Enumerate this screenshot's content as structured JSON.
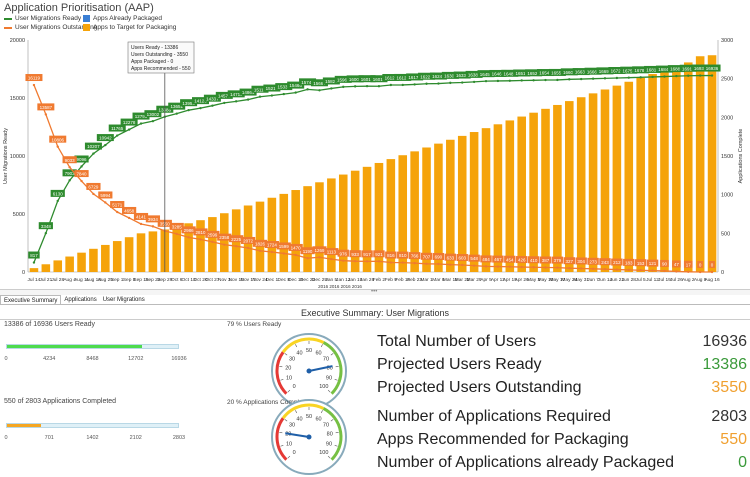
{
  "app": {
    "title": "Application Prioritisation (AAP)"
  },
  "legend": [
    {
      "label": "User Migrations Ready",
      "color": "#2e8b2e",
      "kind": "line"
    },
    {
      "label": "Apps Already Packaged",
      "color": "#3b7fd4",
      "kind": "box"
    },
    {
      "label": "User Migrations Outstanding",
      "color": "#f07a30",
      "kind": "line"
    },
    {
      "label": "Apps to Target for Packaging",
      "color": "#f5a30a",
      "kind": "box"
    }
  ],
  "tooltip": {
    "lines": [
      "Users Ready - 13386",
      "Users Outstanding - 3550",
      "Apps Packaged - 0",
      "Apps Recommended - 550"
    ]
  },
  "chart_data": {
    "type": "bar",
    "xlabel": "2016 2016 2016 2016",
    "ylabel": "User Migrations Ready",
    "y2label": "Applications Complete",
    "ylim": [
      0,
      20000
    ],
    "y2lim": [
      0,
      3000
    ],
    "yticks": [
      "0",
      "5000",
      "10000",
      "15000",
      "20000"
    ],
    "y2ticks": [
      "0",
      "500",
      "1000",
      "1500",
      "2000",
      "2500",
      "3000"
    ],
    "categories": [
      "Jul 14",
      "Jul 21",
      "Jul 28",
      "Aug 4",
      "Aug 11",
      "Aug 18",
      "Aug 25",
      "Sep 1",
      "Sep 8",
      "Sep 15",
      "Sep 22",
      "Sep 29",
      "Oct 6",
      "Oct 13",
      "Oct 20",
      "Oct 27",
      "Nov 3",
      "Nov 10",
      "Nov 17",
      "Nov 24",
      "Dec 1",
      "Dec 8",
      "Dec 15",
      "Dec 22",
      "Dec 29",
      "Jan 5",
      "Jan 12",
      "Jan 19",
      "Jan 26",
      "Feb 2",
      "Feb 9",
      "Feb 16",
      "Feb 23",
      "Mar 1",
      "Mar 8",
      "Mar 15",
      "Mar 22",
      "Mar 29",
      "Apr 5",
      "Apr 12",
      "Apr 19",
      "Apr 26",
      "May 3",
      "May 10",
      "May 17",
      "May 24",
      "May 31",
      "Jun 7",
      "Jun 14",
      "Jun 21",
      "Jun 28",
      "Jul 5",
      "Jul 12",
      "Jul 19",
      "Jul 26",
      "Aug 2",
      "Aug 9",
      "Aug 16"
    ],
    "series": [
      {
        "name": "User Migrations Ready",
        "type": "line",
        "axis": "left",
        "color": "#2e8b2e",
        "values": [
          817,
          3348,
          6130,
          7903,
          9096,
          10207,
          10942,
          11765,
          12278,
          12795,
          13002,
          13386,
          13651,
          13950,
          14126,
          14337,
          14578,
          14711,
          14864,
          15110,
          15212,
          15337,
          15466,
          15746,
          15667,
          15823,
          15960,
          16003,
          16019,
          16015,
          16120,
          16126,
          16170,
          16229,
          16246,
          16303,
          16333,
          16388,
          16452,
          16469,
          16482,
          16510,
          16526,
          16549,
          16557,
          16609,
          16632,
          16663,
          16693,
          16724,
          16753,
          16783,
          16815,
          16846,
          16889,
          16919,
          16936,
          16936
        ],
        "labels": [
          "817",
          "3348",
          "6130",
          "7903",
          "9096",
          "10207",
          "10942",
          "11765",
          "12278",
          "12795",
          "13002",
          "13386",
          "13651",
          "13950",
          "14126",
          "14337",
          "14578",
          "14711",
          "14864",
          "15110",
          "15212",
          "15337",
          "15466",
          "15746",
          "15667",
          "15823",
          "15960",
          "16003",
          "16019",
          "16015",
          "16120",
          "16126",
          "16170",
          "16229",
          "16246",
          "16303",
          "16333",
          "16388",
          "16452",
          "16469",
          "16482",
          "16510",
          "16526",
          "16549",
          "16557",
          "16609",
          "16632",
          "16663",
          "16693",
          "16724",
          "16753",
          "16783",
          "16815",
          "16846",
          "16889",
          "16919",
          "16936",
          "16936"
        ]
      },
      {
        "name": "User Migrations Outstanding",
        "type": "line",
        "axis": "left",
        "color": "#f07a30",
        "values": [
          16119,
          13587,
          10806,
          9033,
          7840,
          6729,
          5994,
          5171,
          4658,
          4141,
          3934,
          3550,
          3285,
          2986,
          2810,
          2599,
          2358,
          2225,
          2072,
          1826,
          1724,
          1599,
          1470,
          1190,
          1269,
          1113,
          976,
          933,
          917,
          921,
          816,
          810,
          766,
          707,
          690,
          633,
          603,
          548,
          484,
          467,
          454,
          426,
          410,
          387,
          379,
          327,
          304,
          273,
          243,
          212,
          183,
          153,
          121,
          90,
          47,
          17,
          0,
          0
        ],
        "labels": [
          "16119",
          "13587",
          "10806",
          "9033",
          "7840",
          "6729",
          "5994",
          "5171",
          "4658",
          "4141",
          "3934",
          "3550",
          "3285",
          "2986",
          "2810",
          "2599",
          "2358",
          "2225",
          "2072",
          "1826",
          "1724",
          "1599",
          "1470",
          "1190",
          "1269",
          "1113",
          "976",
          "933",
          "917",
          "921",
          "816",
          "810",
          "766",
          "707",
          "690",
          "633",
          "603",
          "548",
          "484",
          "467",
          "454",
          "426",
          "410",
          "387",
          "379",
          "327",
          "304",
          "273",
          "243",
          "212",
          "183",
          "153",
          "121",
          "90",
          "47",
          "17",
          "0",
          "0"
        ]
      },
      {
        "name": "Apps to Target for Packaging",
        "type": "bar",
        "axis": "right",
        "color": "#f5a30a",
        "values": [
          50,
          100,
          150,
          200,
          250,
          300,
          350,
          400,
          450,
          500,
          525,
          550,
          590,
          630,
          670,
          710,
          760,
          810,
          860,
          910,
          960,
          1010,
          1060,
          1110,
          1160,
          1210,
          1260,
          1310,
          1360,
          1410,
          1460,
          1510,
          1560,
          1610,
          1660,
          1710,
          1760,
          1810,
          1860,
          1910,
          1960,
          2010,
          2060,
          2110,
          2160,
          2210,
          2260,
          2310,
          2360,
          2410,
          2460,
          2510,
          2560,
          2610,
          2660,
          2710,
          2790,
          2803
        ]
      },
      {
        "name": "Apps Already Packaged",
        "type": "bar",
        "axis": "right",
        "color": "#3b7fd4",
        "values": [
          0,
          0,
          0,
          0,
          0,
          0,
          0,
          0,
          0,
          0,
          0,
          0,
          0,
          0,
          0,
          0,
          0,
          0,
          0,
          0,
          0,
          0,
          0,
          0,
          0,
          0,
          0,
          0,
          0,
          0,
          0,
          0,
          0,
          0,
          0,
          0,
          0,
          0,
          0,
          0,
          0,
          0,
          0,
          0,
          0,
          0,
          0,
          0,
          0,
          0,
          0,
          0,
          0,
          0,
          0,
          0,
          0,
          0
        ]
      }
    ]
  },
  "tabs": [
    {
      "label": "Executive Summary",
      "active": true
    },
    {
      "label": "Applications",
      "active": false
    },
    {
      "label": "User Migrations",
      "active": false
    }
  ],
  "summary": {
    "title": "Executive Summary:  User Migrations"
  },
  "progress": [
    {
      "label": "13386 of 16936  Users Ready",
      "fraction": 0.79,
      "color": "#4ddb4d",
      "ticks": [
        "0",
        "4234",
        "8468",
        "12702",
        "16936"
      ]
    },
    {
      "label": "550 of 2803  Applications Completed",
      "fraction": 0.196,
      "color": "#f5a623",
      "ticks": [
        "0",
        "701",
        "1402",
        "2102",
        "2803"
      ]
    }
  ],
  "gauges": [
    {
      "label": "79 % Users Ready",
      "value": 79,
      "ticks": [
        "0",
        "10",
        "20",
        "30",
        "40",
        "50",
        "60",
        "70",
        "80",
        "90",
        "100"
      ]
    },
    {
      "label": "20 % Applications Complete",
      "value": 20,
      "ticks": [
        "0",
        "10",
        "20",
        "30",
        "40",
        "50",
        "60",
        "70",
        "80",
        "90",
        "100"
      ]
    }
  ],
  "stats": [
    {
      "label": "Total Number of Users",
      "value": "16936",
      "color": "#333333"
    },
    {
      "label": "Projected Users Ready",
      "value": "13386",
      "color": "#3a9a3a"
    },
    {
      "label": "Projected Users Outstanding",
      "value": "3550",
      "color": "#f0a030"
    },
    {
      "label": "Number of Applications Required",
      "value": "2803",
      "color": "#333333"
    },
    {
      "label": "Apps Recommended for Packaging",
      "value": "550",
      "color": "#f0a030"
    },
    {
      "label": "Number of Applications already Packaged",
      "value": "0",
      "color": "#3a9a3a"
    }
  ]
}
